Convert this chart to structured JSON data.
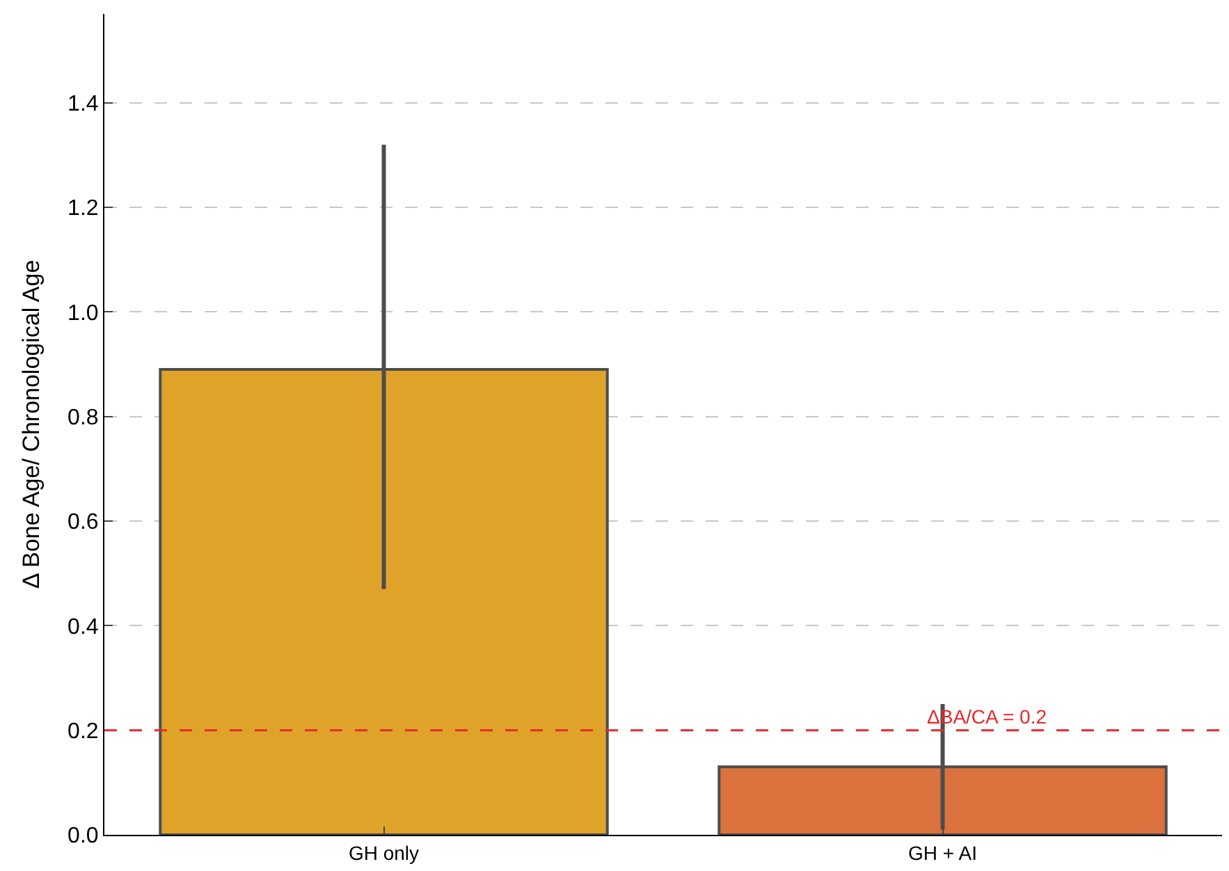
{
  "chart_data": {
    "type": "bar",
    "ylabel": "Δ Bone Age/ Chronological Age",
    "categories": [
      "GH only",
      "GH + AI"
    ],
    "values": [
      0.89,
      0.13
    ],
    "colors": [
      "#e0a32a",
      "#db723d"
    ],
    "errors": [
      [
        0.47,
        1.32
      ],
      [
        0.01,
        0.25
      ]
    ],
    "ylim": [
      0,
      1.57
    ],
    "yticks": [
      {
        "value": 0,
        "label": "0.0"
      },
      {
        "value": 0.2,
        "label": "0.2"
      },
      {
        "value": 0.4,
        "label": "0.4"
      },
      {
        "value": 0.6,
        "label": "0.6"
      },
      {
        "value": 0.8,
        "label": "0.8"
      },
      {
        "value": 1.0,
        "label": "1.0"
      },
      {
        "value": 1.2,
        "label": "1.2"
      },
      {
        "value": 1.4,
        "label": "1.4"
      }
    ],
    "grid": "y",
    "ref_lines": [
      {
        "axis": "y",
        "value": 0.2,
        "label": "ΔBA/CA = 0.2",
        "color": "#e8282b",
        "line_style": "dashed"
      }
    ]
  }
}
